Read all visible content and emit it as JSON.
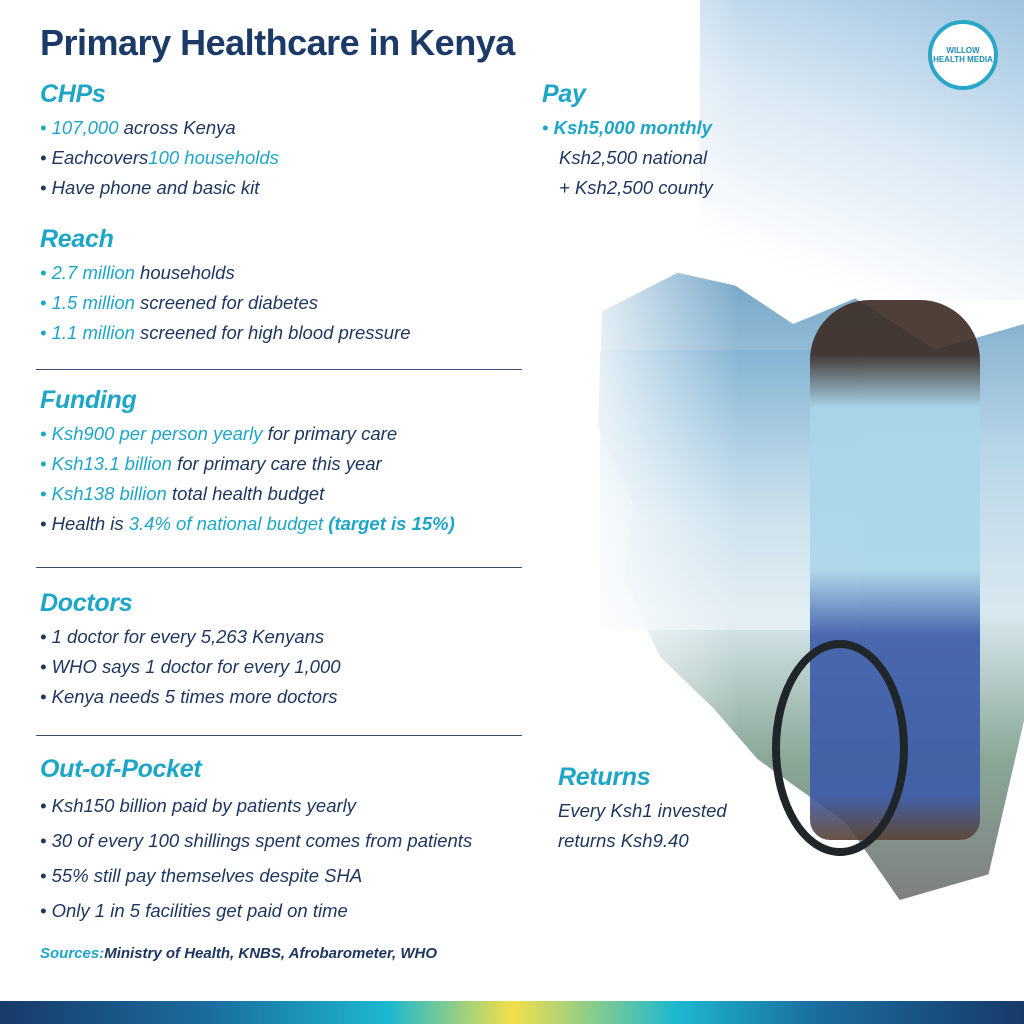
{
  "title": "Primary Healthcare in Kenya",
  "logo": {
    "text": "WILLOW HEALTH MEDIA"
  },
  "colors": {
    "navy": "#1b3a68",
    "accent": "#1ea6c8",
    "body": "#1f3760"
  },
  "sections": {
    "chps": {
      "heading": "CHPs",
      "bullets": [
        [
          {
            "t": "107,000",
            "hl": true
          },
          {
            "t": " across Kenya"
          }
        ],
        [
          {
            "t": "Eachcovers"
          },
          {
            "t": "100 households",
            "hl": true
          }
        ],
        [
          {
            "t": "Have phone and basic kit"
          }
        ]
      ]
    },
    "reach": {
      "heading": "Reach",
      "bullets": [
        [
          {
            "t": "2.7 million",
            "hl": true
          },
          {
            "t": " households"
          }
        ],
        [
          {
            "t": "1.5 million",
            "hl": true
          },
          {
            "t": " screened for diabetes"
          }
        ],
        [
          {
            "t": "1.1 million",
            "hl": true
          },
          {
            "t": " screened for high blood pressure"
          }
        ]
      ]
    },
    "funding": {
      "heading": "Funding",
      "bullets": [
        [
          {
            "t": "Ksh900 per person yearly",
            "hl": true
          },
          {
            "t": " for primary care"
          }
        ],
        [
          {
            "t": "Ksh13.1 billion",
            "hl": true
          },
          {
            "t": " for primary care this year"
          }
        ],
        [
          {
            "t": "Ksh138 billion",
            "hl": true
          },
          {
            "t": " total health budget"
          }
        ],
        [
          {
            "t": "Health is "
          },
          {
            "t": "3.4% of national budget ",
            "hl": true
          },
          {
            "t": "(target is 15%)",
            "hl": true,
            "bold": true
          }
        ]
      ]
    },
    "doctors": {
      "heading": "Doctors",
      "bullets": [
        [
          {
            "t": "1 doctor for every 5,263 Kenyans"
          }
        ],
        [
          {
            "t": "WHO says 1 doctor for every 1,000"
          }
        ],
        [
          {
            "t": "Kenya needs 5 times more doctors"
          }
        ]
      ]
    },
    "oop": {
      "heading": "Out-of-Pocket",
      "bullets": [
        [
          {
            "t": "Ksh150 billion paid by patients yearly"
          }
        ],
        [
          {
            "t": "30 of every 100 shillings spent comes from patients"
          }
        ],
        [
          {
            "t": "55% still pay themselves despite SHA"
          }
        ],
        [
          {
            "t": "Only 1 in 5 facilities get paid on time"
          }
        ]
      ]
    },
    "pay": {
      "heading": "Pay",
      "bullets": [
        [
          {
            "t": "Ksh5,000 monthly",
            "hl": true,
            "bold": true
          }
        ]
      ],
      "lines": [
        "Ksh2,500 national",
        "+ Ksh2,500 county"
      ]
    },
    "returns": {
      "heading": "Returns",
      "lines": [
        "Every Ksh1 invested",
        "returns Ksh9.40"
      ]
    }
  },
  "sources": {
    "label": "Sources:",
    "text": "Ministry of Health, KNBS, Afrobarometer, WHO"
  }
}
